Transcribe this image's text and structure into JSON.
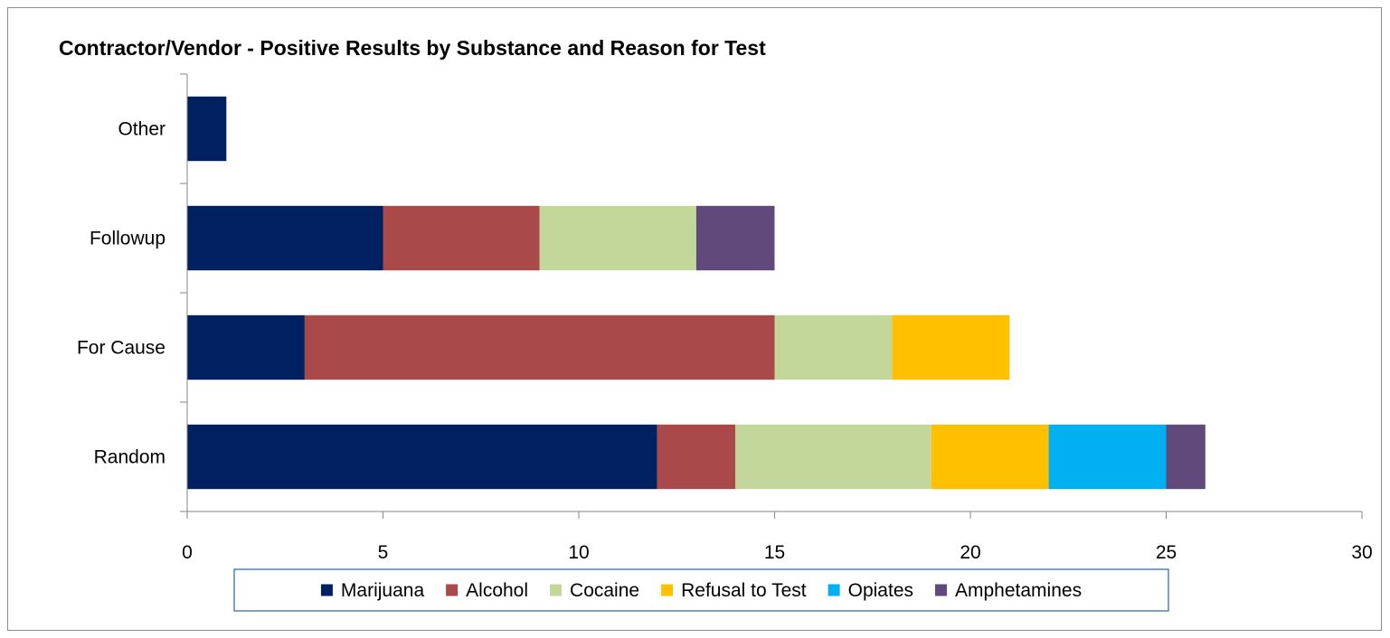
{
  "chart_data": {
    "type": "bar",
    "orientation": "horizontal",
    "stacked": true,
    "title": "Contractor/Vendor - Positive Results by Substance and Reason for Test",
    "categories": [
      "Random",
      "For Cause",
      "Followup",
      "Other"
    ],
    "series": [
      {
        "name": "Marijuana",
        "color": "#002060",
        "values": [
          12,
          3,
          5,
          1
        ]
      },
      {
        "name": "Alcohol",
        "color": "#A9494A",
        "values": [
          2,
          12,
          4,
          0
        ]
      },
      {
        "name": "Cocaine",
        "color": "#C4D79B",
        "values": [
          5,
          3,
          4,
          0
        ]
      },
      {
        "name": "Refusal to Test",
        "color": "#FFC000",
        "values": [
          3,
          3,
          0,
          0
        ]
      },
      {
        "name": "Opiates",
        "color": "#00B0F0",
        "values": [
          3,
          0,
          0,
          0
        ]
      },
      {
        "name": "Amphetamines",
        "color": "#604A7B",
        "values": [
          1,
          0,
          2,
          0
        ]
      }
    ],
    "xlim": [
      0,
      30
    ],
    "xticks": [
      0,
      5,
      10,
      15,
      20,
      25,
      30
    ],
    "xlabel": "",
    "ylabel": "",
    "grid": false,
    "legend_position": "bottom"
  }
}
